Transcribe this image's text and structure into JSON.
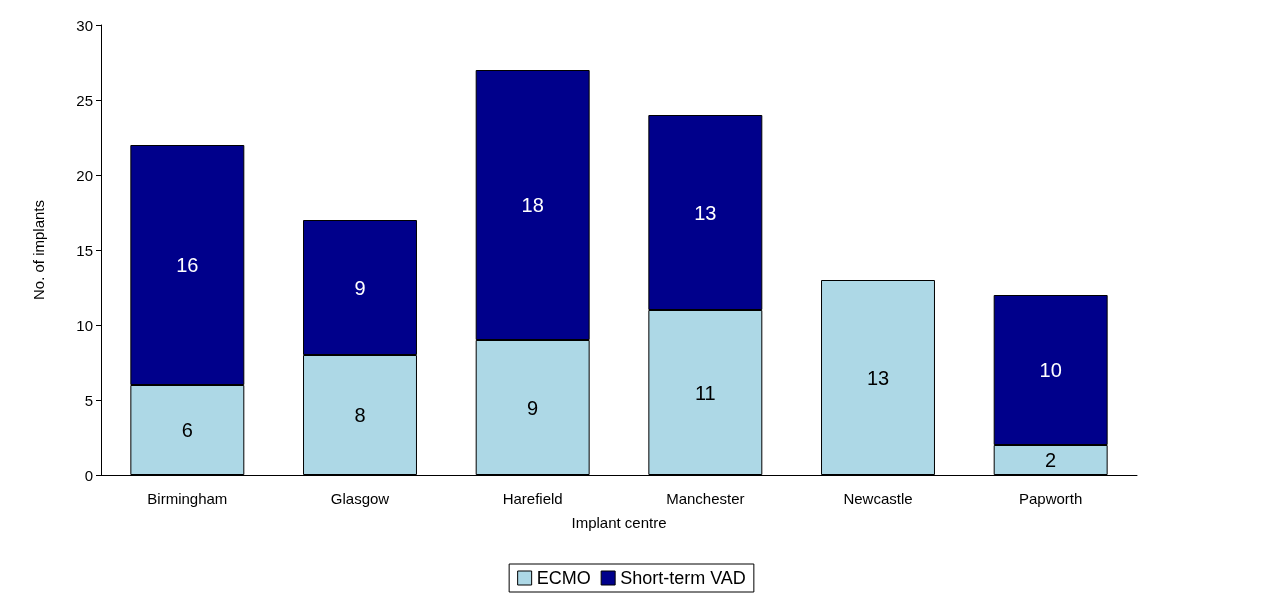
{
  "chart_data": {
    "type": "bar",
    "stacked": true,
    "xlabel": "Implant centre",
    "ylabel": "No. of implants",
    "categories": [
      "Birmingham",
      "Glasgow",
      "Harefield",
      "Manchester",
      "Newcastle",
      "Papworth"
    ],
    "series": [
      {
        "name": "ECMO",
        "color": "#add8e6",
        "values": [
          6,
          8,
          9,
          11,
          13,
          2
        ]
      },
      {
        "name": "Short-term VAD",
        "color": "#00008b",
        "values": [
          16,
          9,
          18,
          13,
          null,
          10
        ]
      }
    ],
    "ylim": [
      0,
      30
    ],
    "yticks": [
      0,
      5,
      10,
      15,
      20,
      25,
      30
    ],
    "grid": false,
    "legend": "bottom",
    "data_labels": true
  }
}
